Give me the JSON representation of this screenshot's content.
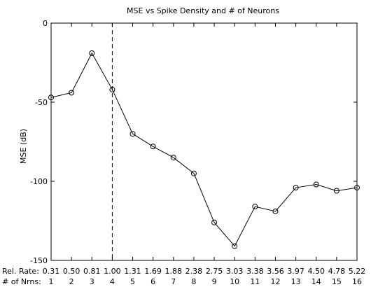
{
  "chart_data": {
    "type": "line",
    "title": "MSE vs Spike Density and # of Neurons",
    "ylabel": "MSE (dB)",
    "ylim": [
      -150,
      0
    ],
    "yticks": [
      0,
      -50,
      -100,
      -150
    ],
    "x": [
      1,
      2,
      3,
      4,
      5,
      6,
      7,
      8,
      9,
      10,
      11,
      12,
      13,
      14,
      15,
      16
    ],
    "y": [
      -47,
      -44,
      -19,
      -42,
      -70,
      -78,
      -85,
      -95,
      -126,
      -141,
      -116,
      -119,
      -104,
      -102,
      -106,
      -104
    ],
    "xlim": [
      1,
      16
    ],
    "rel_rate_label": "Rel. Rate:",
    "rel_rate_ticks": [
      "0.31",
      "0.50",
      "0.81",
      "1.00",
      "1.31",
      "1.69",
      "1.88",
      "2.38",
      "2.75",
      "3.03",
      "3.38",
      "3.56",
      "3.97",
      "4.50",
      "4.78",
      "5.22"
    ],
    "rel_rate_values": [
      0.31,
      0.5,
      0.81,
      1.0,
      1.31,
      1.69,
      1.88,
      2.38,
      2.75,
      3.03,
      3.38,
      3.56,
      3.97,
      4.5,
      4.78,
      5.22
    ],
    "nrns_label": "# of Nrns:",
    "nrns_ticks": [
      "1",
      "2",
      "3",
      "4",
      "5",
      "6",
      "7",
      "8",
      "9",
      "10",
      "11",
      "12",
      "13",
      "14",
      "15",
      "16"
    ],
    "nrns_values": [
      1,
      2,
      3,
      4,
      5,
      6,
      7,
      8,
      9,
      10,
      11,
      12,
      13,
      14,
      15,
      16
    ],
    "reference_line": {
      "rel_rate": 1.0,
      "style": "dashed"
    },
    "marker": "circle",
    "grid": false
  }
}
